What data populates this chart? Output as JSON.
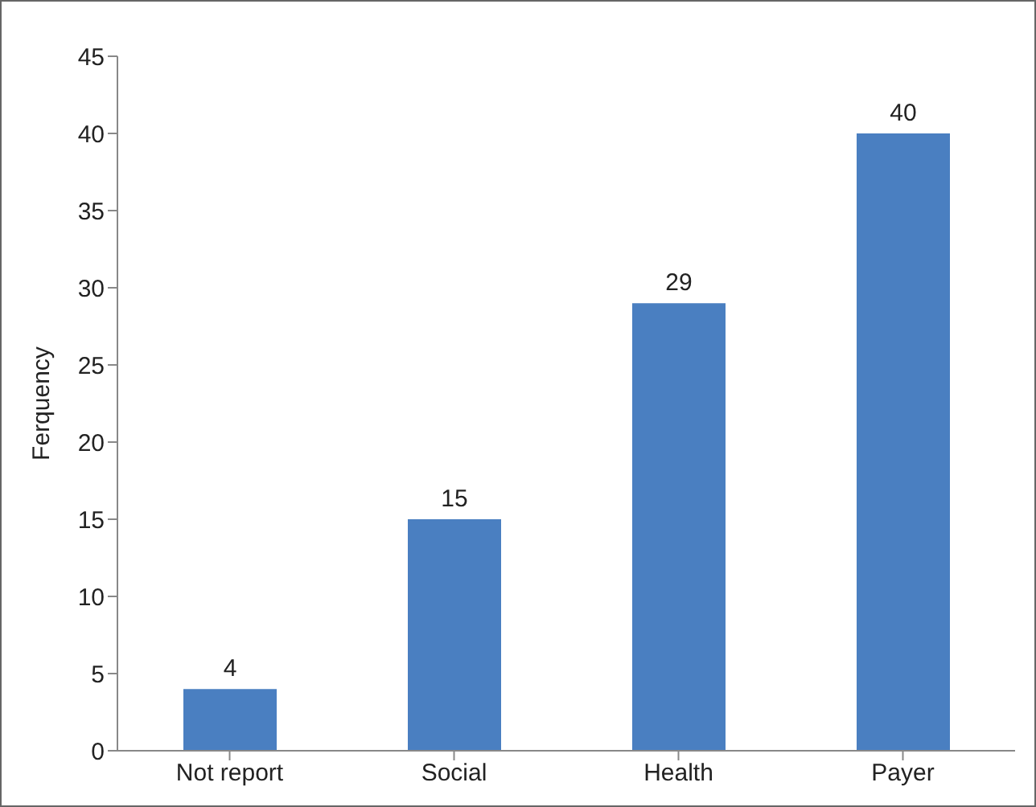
{
  "chart_data": {
    "type": "bar",
    "ylabel": "Ferquency",
    "categories": [
      "Not report",
      "Social",
      "Health",
      "Payer"
    ],
    "values": [
      4,
      15,
      29,
      40
    ],
    "color": "#4a7fc1",
    "ylim": [
      0,
      45
    ],
    "yticks": [
      0,
      5,
      10,
      15,
      20,
      25,
      30,
      35,
      40,
      45
    ],
    "grid": false,
    "data_labels": true
  }
}
